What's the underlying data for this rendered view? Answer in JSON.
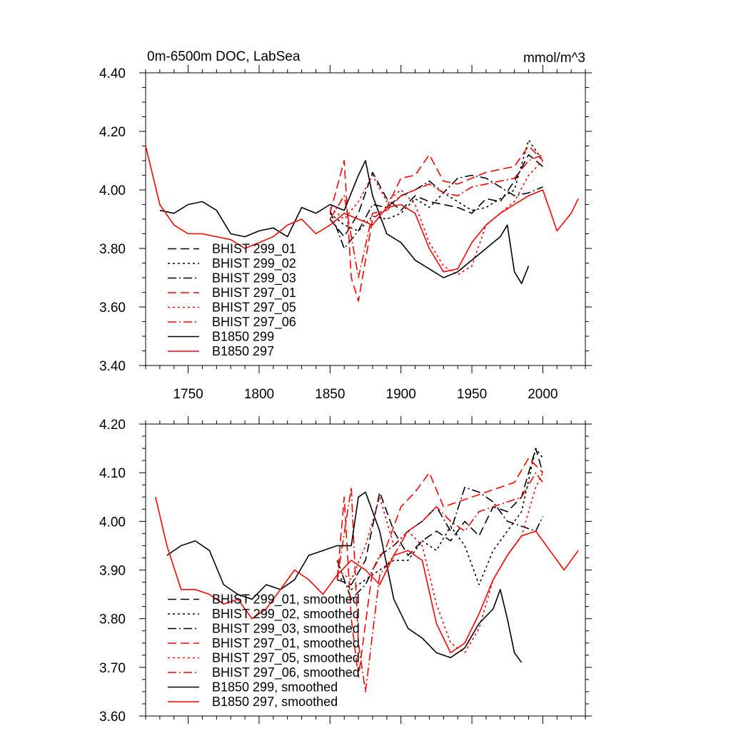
{
  "chart_data": [
    {
      "type": "line",
      "title": "0m-6500m DOC, LabSea",
      "units": "mmol/m^3",
      "xlabel": "",
      "ylabel": "",
      "xlim": [
        1720,
        2030
      ],
      "ylim": [
        3.4,
        4.4
      ],
      "x_ticks": [
        1750,
        1800,
        1850,
        1900,
        1950,
        2000
      ],
      "x_tick_labels": [
        "1750",
        "1800",
        "1850",
        "1900",
        "1950",
        "2000"
      ],
      "y_ticks": [
        3.4,
        3.6,
        3.8,
        4.0,
        4.2,
        4.4
      ],
      "y_tick_labels": [
        "3.40",
        "3.60",
        "3.80",
        "4.00",
        "4.20",
        "4.40"
      ],
      "legend_position": "bottom-left",
      "grid": false,
      "series": [
        {
          "name": "BHIST 299_01",
          "color": "#000000",
          "dash": "dashed",
          "x": [
            1850,
            1860,
            1870,
            1880,
            1890,
            1900,
            1910,
            1920,
            1930,
            1940,
            1950,
            1960,
            1970,
            1980,
            1990,
            2000
          ],
          "y": [
            3.9,
            3.84,
            3.92,
            4.06,
            3.97,
            3.93,
            3.98,
            3.96,
            3.95,
            3.94,
            3.92,
            3.97,
            3.96,
            4.03,
            4.12,
            4.08
          ]
        },
        {
          "name": "BHIST 299_02",
          "color": "#000000",
          "dash": "dotted",
          "x": [
            1850,
            1860,
            1870,
            1880,
            1890,
            1900,
            1910,
            1920,
            1930,
            1940,
            1950,
            1960,
            1970,
            1980,
            1990,
            2000
          ],
          "y": [
            3.92,
            3.88,
            3.86,
            3.91,
            3.9,
            3.92,
            3.97,
            3.94,
            3.99,
            3.96,
            3.93,
            3.94,
            3.97,
            4.0,
            4.17,
            4.1
          ]
        },
        {
          "name": "BHIST 299_03",
          "color": "#000000",
          "dash": "dashdot",
          "x": [
            1850,
            1860,
            1870,
            1880,
            1890,
            1900,
            1910,
            1920,
            1930,
            1940,
            1950,
            1960,
            1970,
            1980,
            1990,
            2000
          ],
          "y": [
            3.93,
            3.8,
            3.86,
            3.95,
            3.94,
            3.98,
            4.0,
            4.03,
            3.99,
            4.04,
            4.05,
            4.04,
            4.01,
            3.98,
            3.99,
            4.01
          ]
        },
        {
          "name": "BHIST 297_01",
          "color": "#ff0000",
          "dash": "dashed",
          "x": [
            1850,
            1860,
            1865,
            1870,
            1880,
            1890,
            1900,
            1910,
            1920,
            1930,
            1940,
            1950,
            1960,
            1970,
            1980,
            1990,
            2000
          ],
          "y": [
            3.92,
            4.1,
            3.7,
            3.62,
            3.9,
            3.94,
            4.04,
            4.05,
            4.12,
            4.03,
            4.02,
            4.04,
            4.06,
            4.07,
            4.08,
            4.15,
            4.1
          ]
        },
        {
          "name": "BHIST 297_05",
          "color": "#ff0000",
          "dash": "dotted",
          "x": [
            1850,
            1860,
            1870,
            1880,
            1890,
            1900,
            1910,
            1920,
            1930,
            1940,
            1950,
            1960,
            1970,
            1980,
            1990,
            2000
          ],
          "y": [
            3.94,
            3.9,
            3.96,
            4.05,
            3.96,
            4.0,
            3.95,
            3.82,
            3.74,
            3.71,
            3.74,
            3.88,
            3.92,
            3.96,
            4.05,
            4.1
          ]
        },
        {
          "name": "BHIST 297_06",
          "color": "#ff0000",
          "dash": "dashdot",
          "x": [
            1850,
            1860,
            1870,
            1880,
            1890,
            1900,
            1910,
            1920,
            1930,
            1940,
            1950,
            1960,
            1970,
            1980,
            1990,
            2000
          ],
          "y": [
            3.9,
            3.98,
            3.7,
            3.92,
            3.93,
            3.98,
            4.0,
            4.02,
            3.99,
            3.98,
            4.01,
            4.02,
            4.03,
            4.04,
            4.1,
            4.12
          ]
        },
        {
          "name": "B1850 299",
          "color": "#000000",
          "dash": "solid",
          "x": [
            1730,
            1740,
            1750,
            1760,
            1770,
            1780,
            1790,
            1800,
            1810,
            1820,
            1830,
            1840,
            1850,
            1860,
            1870,
            1875,
            1880,
            1890,
            1900,
            1910,
            1920,
            1930,
            1940,
            1950,
            1960,
            1970,
            1975,
            1980,
            1985,
            1990
          ],
          "y": [
            3.93,
            3.92,
            3.95,
            3.96,
            3.93,
            3.85,
            3.84,
            3.86,
            3.87,
            3.84,
            3.94,
            3.92,
            3.95,
            3.93,
            4.05,
            4.1,
            3.98,
            3.85,
            3.82,
            3.76,
            3.73,
            3.7,
            3.72,
            3.76,
            3.8,
            3.84,
            3.88,
            3.72,
            3.68,
            3.74
          ]
        },
        {
          "name": "B1850 297",
          "color": "#ff0000",
          "dash": "solid",
          "x": [
            1720,
            1730,
            1740,
            1750,
            1760,
            1770,
            1780,
            1790,
            1800,
            1810,
            1820,
            1830,
            1840,
            1850,
            1860,
            1870,
            1880,
            1890,
            1900,
            1910,
            1920,
            1930,
            1940,
            1950,
            1960,
            1970,
            1980,
            1990,
            2000,
            2010,
            2020,
            2025
          ],
          "y": [
            4.15,
            3.95,
            3.88,
            3.85,
            3.85,
            3.84,
            3.83,
            3.8,
            3.82,
            3.84,
            3.88,
            3.9,
            3.85,
            3.88,
            3.92,
            3.9,
            3.88,
            3.94,
            3.95,
            3.92,
            3.8,
            3.72,
            3.73,
            3.82,
            3.88,
            3.92,
            3.95,
            3.98,
            4.0,
            3.86,
            3.92,
            3.97
          ]
        }
      ]
    },
    {
      "type": "line",
      "title": "",
      "xlabel": "",
      "ylabel": "",
      "xlim": [
        1720,
        2030
      ],
      "ylim": [
        3.6,
        4.2
      ],
      "x_ticks": [
        1750,
        1800,
        1850,
        1900,
        1950,
        2000
      ],
      "x_tick_labels": [],
      "y_ticks": [
        3.6,
        3.7,
        3.8,
        3.9,
        4.0,
        4.1,
        4.2
      ],
      "y_tick_labels": [
        "3.60",
        "3.70",
        "3.80",
        "3.90",
        "4.00",
        "4.10",
        "4.20"
      ],
      "legend_position": "bottom-left",
      "grid": false,
      "series": [
        {
          "name": "BHIST 299_01, smoothed",
          "color": "#000000",
          "dash": "dashed",
          "x": [
            1855,
            1865,
            1875,
            1885,
            1895,
            1905,
            1915,
            1925,
            1935,
            1945,
            1955,
            1965,
            1975,
            1985,
            1995,
            2000
          ],
          "y": [
            3.88,
            3.87,
            3.92,
            4.06,
            3.98,
            3.93,
            3.96,
            3.98,
            3.96,
            4.0,
            3.97,
            4.03,
            4.02,
            4.05,
            4.15,
            4.1
          ]
        },
        {
          "name": "BHIST 299_02, smoothed",
          "color": "#000000",
          "dash": "dotted",
          "x": [
            1855,
            1865,
            1875,
            1885,
            1895,
            1905,
            1915,
            1925,
            1935,
            1945,
            1955,
            1965,
            1975,
            1985,
            1995,
            2000
          ],
          "y": [
            3.89,
            3.86,
            3.88,
            3.9,
            3.92,
            3.92,
            3.96,
            3.94,
            3.99,
            3.95,
            3.87,
            3.94,
            3.98,
            4.02,
            4.15,
            4.13
          ]
        },
        {
          "name": "BHIST 299_03, smoothed",
          "color": "#000000",
          "dash": "dashdot",
          "x": [
            1855,
            1865,
            1875,
            1885,
            1895,
            1905,
            1915,
            1925,
            1935,
            1945,
            1955,
            1965,
            1975,
            1985,
            1995,
            2000
          ],
          "y": [
            3.92,
            3.84,
            3.87,
            3.93,
            3.95,
            3.98,
            4.0,
            4.03,
            3.98,
            4.07,
            4.06,
            4.04,
            4.0,
            3.99,
            3.98,
            4.01
          ]
        },
        {
          "name": "BHIST 297_01, smoothed",
          "color": "#ff0000",
          "dash": "dashed",
          "x": [
            1855,
            1860,
            1865,
            1870,
            1880,
            1890,
            1900,
            1910,
            1920,
            1930,
            1940,
            1950,
            1960,
            1970,
            1980,
            1990,
            2000
          ],
          "y": [
            3.88,
            4.05,
            3.8,
            3.68,
            3.9,
            3.95,
            4.03,
            4.06,
            4.1,
            4.03,
            4.04,
            4.05,
            4.06,
            4.07,
            4.08,
            4.13,
            4.1
          ]
        },
        {
          "name": "BHIST 297_05, smoothed",
          "color": "#ff0000",
          "dash": "dotted",
          "x": [
            1855,
            1865,
            1875,
            1885,
            1895,
            1905,
            1915,
            1925,
            1935,
            1945,
            1955,
            1965,
            1975,
            1985,
            1995,
            2000
          ],
          "y": [
            3.9,
            3.88,
            3.95,
            4.05,
            3.95,
            3.98,
            3.95,
            3.83,
            3.75,
            3.73,
            3.78,
            3.88,
            3.93,
            3.97,
            4.07,
            4.1
          ]
        },
        {
          "name": "BHIST 297_06, smoothed",
          "color": "#ff0000",
          "dash": "dashdot",
          "x": [
            1855,
            1865,
            1870,
            1875,
            1885,
            1895,
            1905,
            1915,
            1925,
            1935,
            1945,
            1955,
            1965,
            1975,
            1985,
            1995,
            2000
          ],
          "y": [
            3.88,
            4.07,
            3.75,
            3.65,
            3.89,
            3.93,
            3.98,
            4.0,
            4.03,
            4.0,
            3.98,
            4.02,
            4.03,
            4.04,
            4.05,
            4.1,
            4.08
          ]
        },
        {
          "name": "B1850 299, smoothed",
          "color": "#000000",
          "dash": "solid",
          "x": [
            1735,
            1745,
            1755,
            1765,
            1775,
            1785,
            1795,
            1805,
            1815,
            1825,
            1835,
            1845,
            1855,
            1865,
            1870,
            1875,
            1885,
            1895,
            1905,
            1915,
            1925,
            1935,
            1945,
            1955,
            1965,
            1970,
            1975,
            1980,
            1985
          ],
          "y": [
            3.93,
            3.95,
            3.96,
            3.94,
            3.87,
            3.85,
            3.84,
            3.87,
            3.86,
            3.88,
            3.93,
            3.94,
            3.95,
            3.95,
            4.05,
            4.06,
            3.98,
            3.84,
            3.78,
            3.76,
            3.73,
            3.72,
            3.74,
            3.79,
            3.82,
            3.86,
            3.8,
            3.73,
            3.71
          ]
        },
        {
          "name": "B1850 297, smoothed",
          "color": "#ff0000",
          "dash": "solid",
          "x": [
            1727,
            1735,
            1745,
            1755,
            1765,
            1775,
            1785,
            1795,
            1805,
            1815,
            1825,
            1835,
            1845,
            1855,
            1865,
            1875,
            1885,
            1895,
            1905,
            1915,
            1925,
            1935,
            1945,
            1955,
            1965,
            1975,
            1985,
            1995,
            2005,
            2015,
            2025
          ],
          "y": [
            4.05,
            3.95,
            3.86,
            3.86,
            3.85,
            3.83,
            3.84,
            3.8,
            3.82,
            3.86,
            3.9,
            3.88,
            3.85,
            3.89,
            3.92,
            3.9,
            3.87,
            3.93,
            3.94,
            3.92,
            3.79,
            3.73,
            3.75,
            3.81,
            3.88,
            3.93,
            3.97,
            3.98,
            3.94,
            3.9,
            3.94
          ]
        }
      ]
    }
  ]
}
